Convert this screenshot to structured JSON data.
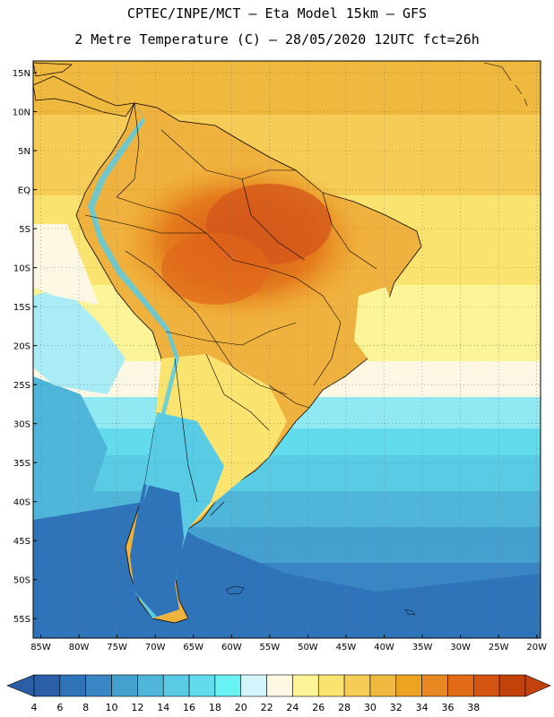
{
  "titles": {
    "line1": "CPTEC/INPE/MCT –  Eta Model 15km – GFS",
    "line2": "2 Metre Temperature (C) – 28/05/2020 12UTC fct=26h"
  },
  "map": {
    "lat_labels": [
      "15N",
      "10N",
      "5N",
      "EQ",
      "5S",
      "10S",
      "15S",
      "20S",
      "25S",
      "30S",
      "35S",
      "40S",
      "45S",
      "50S",
      "55S"
    ],
    "lon_labels": [
      "85W",
      "80W",
      "75W",
      "70W",
      "65W",
      "60W",
      "55W",
      "50W",
      "45W",
      "40W",
      "35W",
      "30W",
      "25W",
      "20W"
    ],
    "lat_values": [
      15,
      10,
      5,
      0,
      -5,
      -10,
      -15,
      -20,
      -25,
      -30,
      -35,
      -40,
      -45,
      -50,
      -55
    ],
    "lon_values": [
      -85,
      -80,
      -75,
      -70,
      -65,
      -60,
      -55,
      -50,
      -45,
      -40,
      -35,
      -30,
      -25,
      -20
    ],
    "lat_range": [
      -57.5,
      16.5
    ],
    "lon_range": [
      -86,
      -19.5
    ]
  },
  "colorbar": {
    "labels": [
      "4",
      "6",
      "8",
      "10",
      "12",
      "14",
      "16",
      "18",
      "20",
      "22",
      "24",
      "26",
      "28",
      "30",
      "32",
      "34",
      "36",
      "38"
    ],
    "colors": [
      "#2a5fa8",
      "#2f73b8",
      "#3a86c4",
      "#44a0cf",
      "#4fb6d9",
      "#5acbe4",
      "#62dced",
      "#69f2f2",
      "#d4f4fb",
      "#fdf7e4",
      "#fdf498",
      "#fbe36f",
      "#f5cc55",
      "#efb83f",
      "#eca421",
      "#e88820",
      "#e16b16",
      "#d45511",
      "#c2420c"
    ],
    "left_arrow_color": "#2a5fa8",
    "right_arrow_color": "#c2420c"
  }
}
